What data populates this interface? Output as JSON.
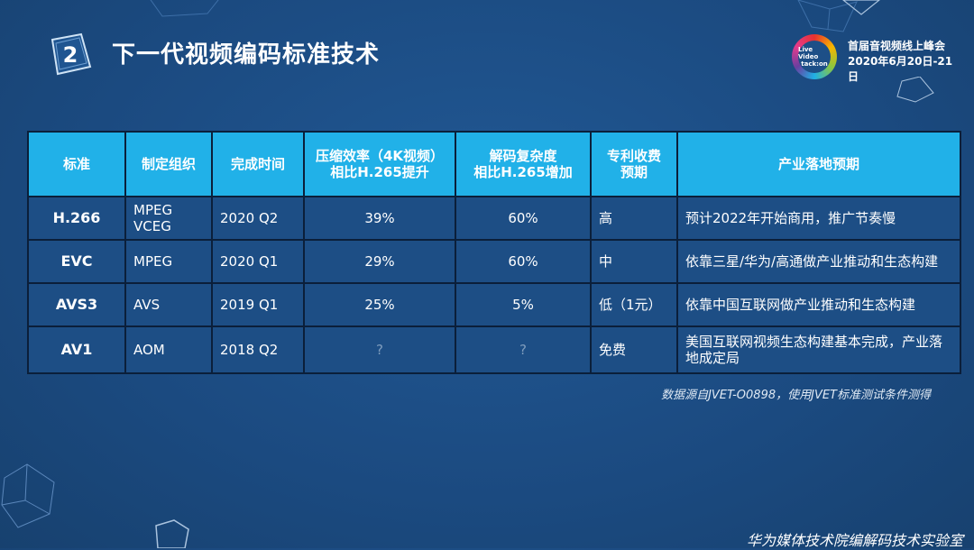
{
  "section": {
    "number": "2",
    "title": "下一代视频编码标准技术"
  },
  "conference": {
    "logo_line1": "Live Video",
    "logo_line2": "tack:on",
    "name": "首届音视频线上峰会",
    "date": "2020年6月20日-21日"
  },
  "table": {
    "headers": [
      "标准",
      "制定组织",
      "完成时间",
      "压缩效率（4K视频）\n相比H.265提升",
      "解码复杂度\n相比H.265增加",
      "专利收费\n预期",
      "产业落地预期"
    ],
    "rows": [
      {
        "standard": "H.266",
        "org": "MPEG\nVCEG",
        "time": "2020 Q2",
        "efficiency": "39%",
        "complexity": "60%",
        "patent": "高",
        "outlook": "预计2022年开始商用，推广节奏慢"
      },
      {
        "standard": "EVC",
        "org": "MPEG",
        "time": "2020 Q1",
        "efficiency": "29%",
        "complexity": "60%",
        "patent": "中",
        "outlook": "依靠三星/华为/高通做产业推动和生态构建"
      },
      {
        "standard": "AVS3",
        "org": "AVS",
        "time": "2019 Q1",
        "efficiency": "25%",
        "complexity": "5%",
        "patent": "低（1元）",
        "outlook": "依靠中国互联网做产业推动和生态构建"
      },
      {
        "standard": "AV1",
        "org": "AOM",
        "time": "2018 Q2",
        "efficiency": "?",
        "complexity": "?",
        "patent": "免费",
        "outlook": "美国互联网视频生态构建基本完成，产业落地成定局"
      }
    ]
  },
  "source_note": "数据源自JVET-O0898，使用JVET标准测试条件测得",
  "footer": "华为媒体技术院编解码技术实验室",
  "colors": {
    "background": "#1d4f87",
    "header": "#21b1e8",
    "border": "#0b1f3a"
  }
}
